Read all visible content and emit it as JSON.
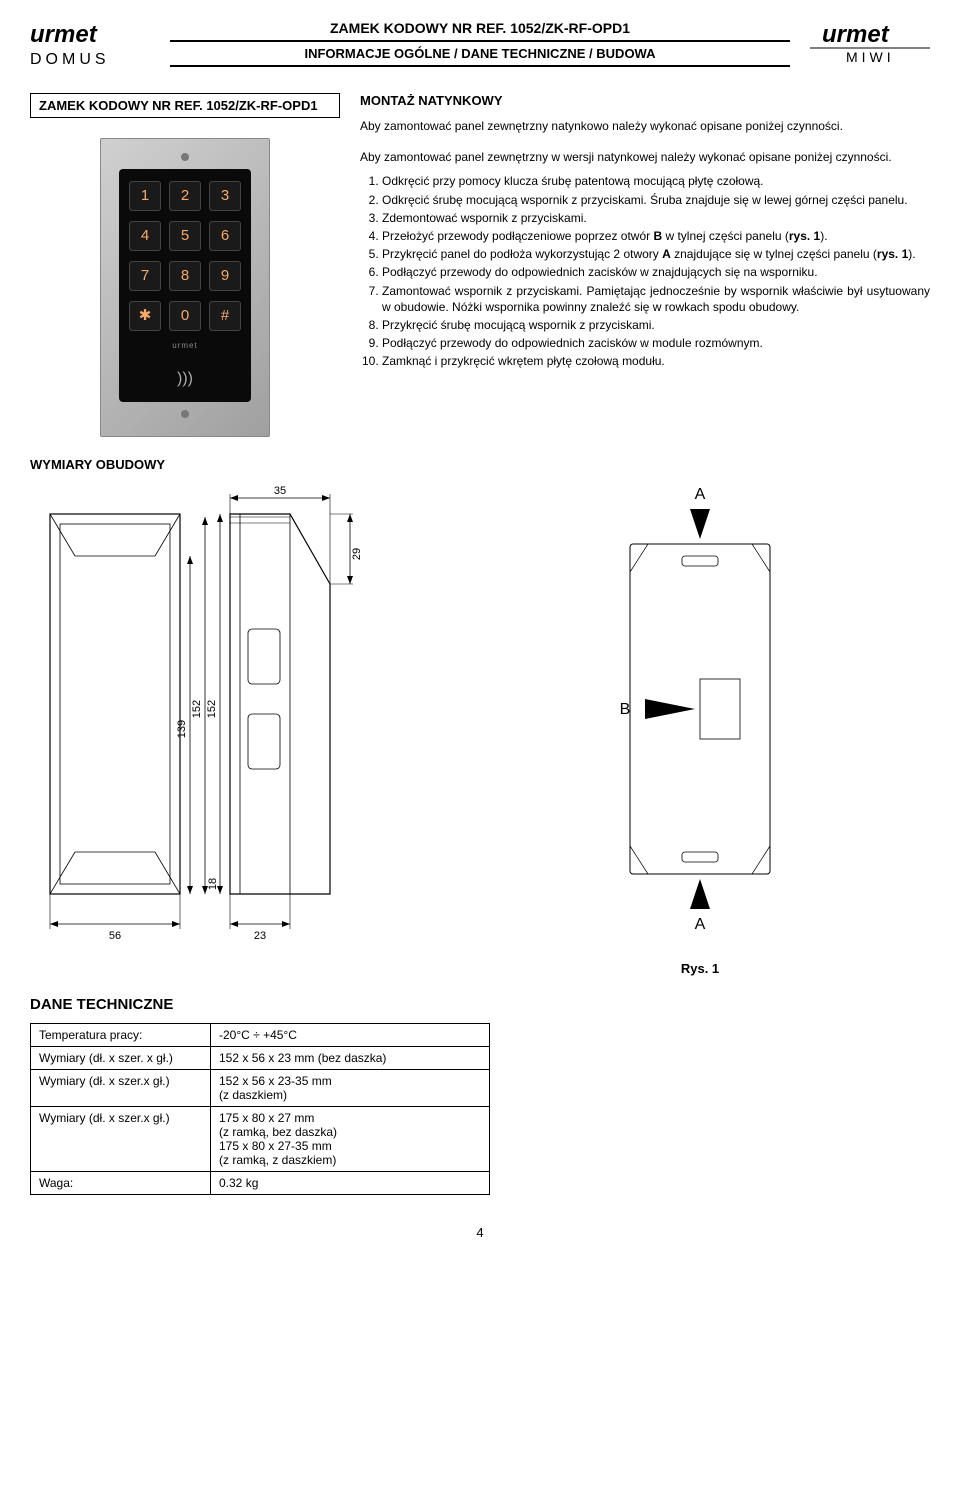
{
  "header": {
    "title": "ZAMEK KODOWY NR REF. 1052/ZK-RF-OPD1",
    "subtitle": "INFORMACJE OGÓLNE / DANE TECHNICZNE / BUDOWA",
    "logo_left_top": "urmet",
    "logo_left_bottom": "DOMUS",
    "logo_right_top": "urmet",
    "logo_right_bottom": "MIWI"
  },
  "left": {
    "section_title": "ZAMEK KODOWY NR REF. 1052/ZK-RF-OPD1",
    "keypad": {
      "keys": [
        [
          "1",
          "2",
          "3"
        ],
        [
          "4",
          "5",
          "6"
        ],
        [
          "7",
          "8",
          "9"
        ],
        [
          "✱",
          "0",
          "#"
        ]
      ],
      "brand": "urmet",
      "rfid": ")))"
    }
  },
  "right": {
    "heading": "MONTAŻ NATYNKOWY",
    "intro1": "Aby zamontować panel zewnętrzny natynkowo należy wykonać opisane poniżej czynności.",
    "intro2": "Aby zamontować panel zewnętrzny w wersji natynkowej należy wykonać opisane poniżej czynności.",
    "steps": [
      "Odkręcić przy pomocy klucza śrubę patentową mocującą płytę czołową.",
      "Odkręcić śrubę mocującą wspornik z przyciskami. Śruba znajduje się w lewej górnej części panelu.",
      "Zdemontować wspornik z przyciskami.",
      "Przełożyć przewody podłączeniowe poprzez otwór B w tylnej części panelu (rys. 1).",
      "Przykręcić panel do podłoża wykorzystując 2 otwory A znajdujące się w tylnej części panelu (rys. 1).",
      "Podłączyć przewody do odpowiednich zacisków w znajdujących się na wsporniku.",
      "Zamontować wspornik z przyciskami. Pamiętając jednocześnie by wspornik właściwie był usytuowany w obudowie. Nóżki wspornika powinny znaleźć się w rowkach spodu obudowy.",
      "Przykręcić śrubę mocującą wspornik z przyciskami.",
      "Podłączyć przewody do odpowiednich zacisków w module rozmównym.",
      "Zamknąć i przykręcić wkrętem płytę czołową modułu."
    ]
  },
  "dims": {
    "heading": "WYMIARY OBUDOWY",
    "top_35": "35",
    "v_29": "29",
    "v_152a": "152",
    "v_152b": "152",
    "v_139": "139",
    "v_18": "18",
    "b_56": "56",
    "b_23": "23"
  },
  "fig1": {
    "labelA_top": "A",
    "labelB": "B",
    "labelA_bottom": "A",
    "caption": "Rys. 1"
  },
  "tech": {
    "heading": "DANE TECHNICZNE",
    "rows": [
      {
        "k": "Temperatura pracy:",
        "v": "-20°C ÷ +45°C"
      },
      {
        "k": "Wymiary (dł. x szer. x gł.)",
        "v": "152 x 56 x 23 mm (bez daszka)"
      },
      {
        "k": "Wymiary (dł. x szer.x gł.)",
        "v": "152 x 56 x 23-35 mm\n(z daszkiem)"
      },
      {
        "k": "Wymiary (dł. x szer.x gł.)",
        "v": "175 x 80 x 27 mm\n(z ramką, bez daszka)\n175 x 80 x 27-35 mm\n(z ramką, z daszkiem)"
      },
      {
        "k": "Waga:",
        "v": "0.32 kg"
      }
    ]
  },
  "page_number": "4"
}
